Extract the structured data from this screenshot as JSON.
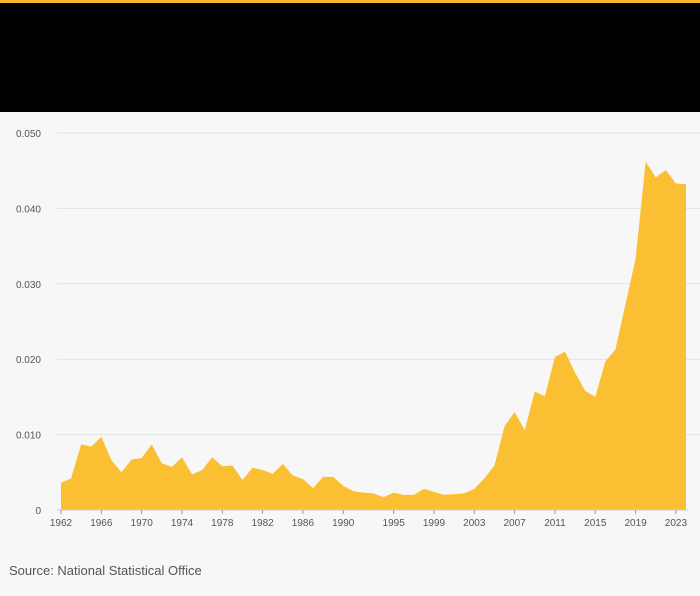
{
  "source_text": "Source: National Statistical Office",
  "colors": {
    "accent": "#f6b82d",
    "area_fill": "#fbbf33",
    "header_bg": "#000000",
    "background": "#f7f7f7",
    "grid": "#e2e2e2"
  },
  "chart_data": {
    "type": "area",
    "title": "",
    "xlabel": "",
    "ylabel": "",
    "grid": true,
    "xlim": [
      1962,
      2024
    ],
    "ylim": [
      0,
      0.05
    ],
    "y_ticks": [
      "0",
      "0.010",
      "0.020",
      "0.030",
      "0.040",
      "0.050"
    ],
    "x_ticks": [
      "1962",
      "1966",
      "1970",
      "1974",
      "1978",
      "1982",
      "1986",
      "1990",
      "1995",
      "1999",
      "2003",
      "2007",
      "2011",
      "2015",
      "2019",
      "2023"
    ],
    "series": [
      {
        "x": [
          1962,
          1963,
          1964,
          1965,
          1966,
          1967,
          1968,
          1969,
          1970,
          1971,
          1972,
          1973,
          1974,
          1975,
          1976,
          1977,
          1978,
          1979,
          1980,
          1981,
          1982,
          1983,
          1984,
          1985,
          1986,
          1987,
          1988,
          1989,
          1990,
          1991,
          1992,
          1993,
          1994,
          1995,
          1996,
          1997,
          1998,
          1999,
          2000,
          2001,
          2002,
          2003,
          2004,
          2005,
          2006,
          2007,
          2008,
          2009,
          2010,
          2011,
          2012,
          2013,
          2014,
          2015,
          2016,
          2017,
          2018,
          2019,
          2020,
          2021,
          2022,
          2023,
          2024
        ],
        "values": [
          0.0036,
          0.0042,
          0.0087,
          0.0084,
          0.0097,
          0.0066,
          0.005,
          0.0067,
          0.0069,
          0.0087,
          0.0062,
          0.0057,
          0.007,
          0.0047,
          0.0053,
          0.007,
          0.0058,
          0.0059,
          0.004,
          0.0056,
          0.0053,
          0.0048,
          0.0061,
          0.0046,
          0.0041,
          0.0029,
          0.0044,
          0.0044,
          0.0032,
          0.0025,
          0.0023,
          0.0022,
          0.0017,
          0.0023,
          0.002,
          0.002,
          0.0028,
          0.0024,
          0.002,
          0.0021,
          0.0022,
          0.0028,
          0.0042,
          0.0059,
          0.0111,
          0.013,
          0.0106,
          0.0157,
          0.0151,
          0.0203,
          0.021,
          0.0182,
          0.0158,
          0.015,
          0.0197,
          0.0213,
          0.0273,
          0.0333,
          0.0462,
          0.0441,
          0.0451,
          0.0433,
          0.0432
        ]
      }
    ]
  }
}
